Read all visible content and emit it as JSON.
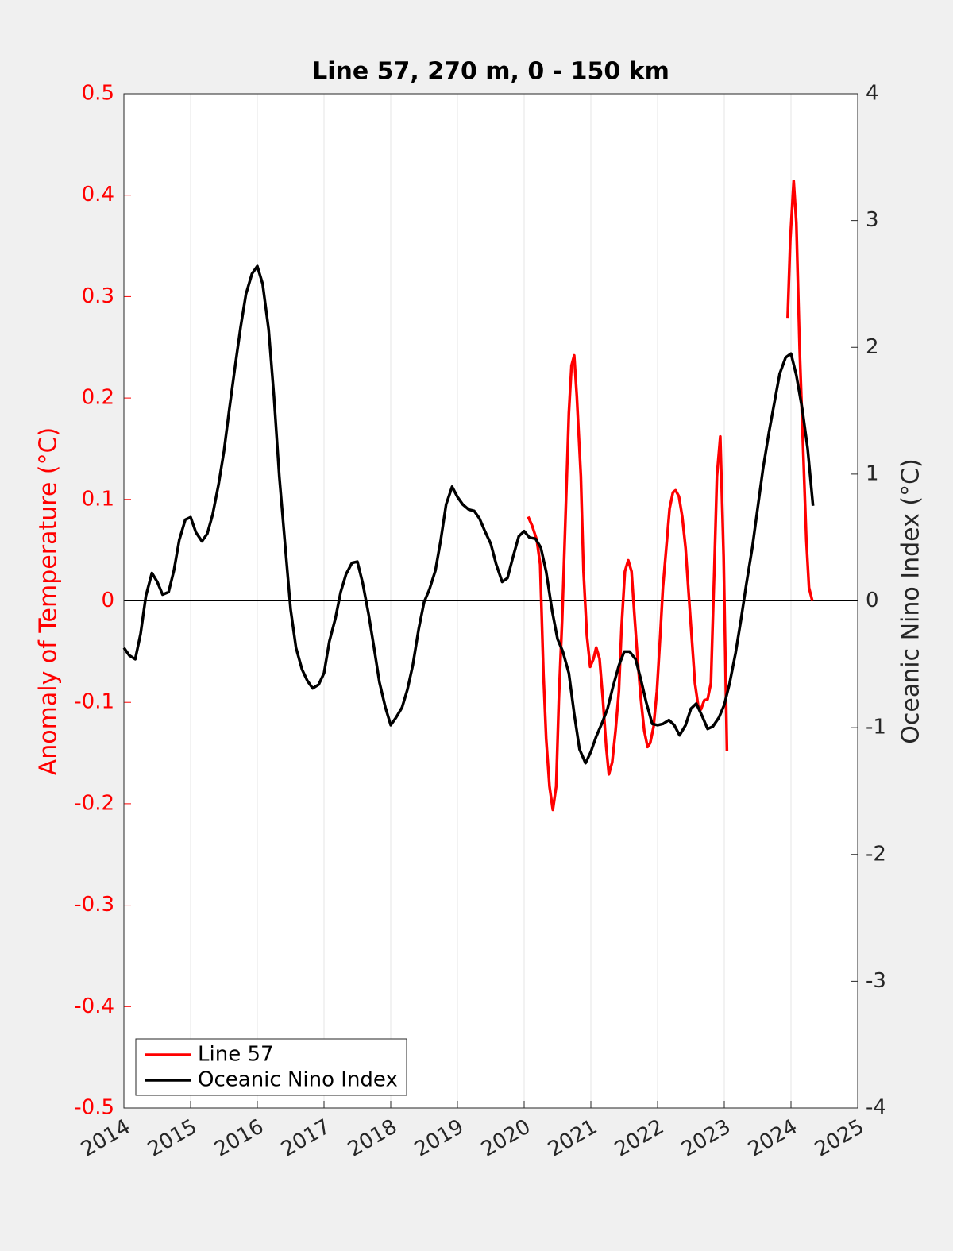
{
  "chart_data": {
    "type": "line",
    "title": "Line 57, 270 m, 0 - 150 km",
    "ylabel": "Anomaly of Temperature (°C)",
    "y2label": "Oceanic Nino Index (°C)",
    "xlim": [
      2014,
      2025
    ],
    "xticks": [
      2014,
      2015,
      2016,
      2017,
      2018,
      2019,
      2020,
      2021,
      2022,
      2023,
      2024,
      2025
    ],
    "ylim": [
      -0.5,
      0.5
    ],
    "yticks": [
      -0.5,
      -0.4,
      -0.3,
      -0.2,
      -0.1,
      0,
      0.1,
      0.2,
      0.3,
      0.4,
      0.5
    ],
    "y2lim": [
      -4,
      4
    ],
    "y2ticks": [
      -4,
      -3,
      -2,
      -1,
      0,
      1,
      2,
      3,
      4
    ],
    "reference_line": 0,
    "grid": true,
    "legend": "lower left",
    "series": [
      {
        "name": "Line 57",
        "color": "#ff0000",
        "axis": "y",
        "x": [
          2020.06,
          2020.12,
          2020.19,
          2020.24,
          2020.29,
          2020.33,
          2020.38,
          2020.43,
          2020.48,
          2020.52,
          2020.57,
          2020.62,
          2020.67,
          2020.71,
          2020.75,
          2020.79,
          2020.85,
          2020.89,
          2020.94,
          2020.99,
          2021.04,
          2021.08,
          2021.13,
          2021.18,
          2021.23,
          2021.27,
          2021.32,
          2021.37,
          2021.42,
          2021.46,
          2021.51,
          2021.56,
          2021.61,
          2021.65,
          2021.7,
          2021.75,
          2021.8,
          2021.85,
          2021.89,
          2021.94,
          2021.99,
          2022.04,
          2022.08,
          2022.13,
          2022.18,
          2022.23,
          2022.27,
          2022.32,
          2022.37,
          2022.42,
          2022.46,
          2022.51,
          2022.56,
          2022.61,
          2022.65,
          2022.7,
          2022.75,
          2022.8,
          2022.85,
          2022.89,
          2022.94,
          2022.99,
          2023.04,
          2023.5,
          2023.95,
          2023.99,
          2024.04,
          2024.08,
          2024.13,
          2024.18,
          2024.23,
          2024.27,
          2024.32
        ],
        "values": [
          0.083,
          0.074,
          0.06,
          0.036,
          -0.073,
          -0.136,
          -0.183,
          -0.206,
          -0.183,
          -0.097,
          -0.018,
          0.083,
          0.185,
          0.232,
          0.242,
          0.201,
          0.123,
          0.029,
          -0.034,
          -0.065,
          -0.057,
          -0.046,
          -0.057,
          -0.097,
          -0.144,
          -0.171,
          -0.159,
          -0.128,
          -0.089,
          -0.026,
          0.029,
          0.04,
          0.029,
          -0.011,
          -0.057,
          -0.097,
          -0.128,
          -0.144,
          -0.14,
          -0.124,
          -0.089,
          -0.034,
          0.013,
          0.052,
          0.091,
          0.107,
          0.109,
          0.103,
          0.083,
          0.052,
          0.013,
          -0.034,
          -0.081,
          -0.104,
          -0.107,
          -0.098,
          -0.097,
          -0.081,
          0.029,
          0.123,
          0.162,
          0.044,
          -0.148,
          null,
          0.279,
          0.357,
          0.414,
          0.373,
          0.248,
          0.154,
          0.06,
          0.013,
          0.0
        ]
      },
      {
        "name": "Oceanic Nino Index",
        "color": "#000000",
        "axis": "y2",
        "x": [
          2014.0,
          2014.08,
          2014.17,
          2014.25,
          2014.33,
          2014.42,
          2014.5,
          2014.58,
          2014.67,
          2014.75,
          2014.83,
          2014.92,
          2015.0,
          2015.08,
          2015.17,
          2015.25,
          2015.33,
          2015.42,
          2015.5,
          2015.58,
          2015.67,
          2015.75,
          2015.83,
          2015.92,
          2016.0,
          2016.08,
          2016.17,
          2016.25,
          2016.33,
          2016.42,
          2016.5,
          2016.58,
          2016.67,
          2016.75,
          2016.83,
          2016.92,
          2017.0,
          2017.08,
          2017.17,
          2017.25,
          2017.33,
          2017.42,
          2017.5,
          2017.58,
          2017.67,
          2017.75,
          2017.83,
          2017.92,
          2018.0,
          2018.08,
          2018.17,
          2018.25,
          2018.33,
          2018.42,
          2018.5,
          2018.58,
          2018.67,
          2018.75,
          2018.83,
          2018.92,
          2019.0,
          2019.08,
          2019.17,
          2019.25,
          2019.33,
          2019.42,
          2019.5,
          2019.58,
          2019.67,
          2019.75,
          2019.83,
          2019.92,
          2020.0,
          2020.08,
          2020.17,
          2020.25,
          2020.33,
          2020.42,
          2020.5,
          2020.58,
          2020.67,
          2020.75,
          2020.83,
          2020.92,
          2021.0,
          2021.08,
          2021.17,
          2021.25,
          2021.33,
          2021.42,
          2021.5,
          2021.58,
          2021.67,
          2021.75,
          2021.83,
          2021.92,
          2022.0,
          2022.08,
          2022.17,
          2022.25,
          2022.33,
          2022.42,
          2022.5,
          2022.58,
          2022.67,
          2022.75,
          2022.83,
          2022.92,
          2023.0,
          2023.08,
          2023.17,
          2023.25,
          2023.33,
          2023.42,
          2023.5,
          2023.58,
          2023.67,
          2023.75,
          2023.83,
          2023.92,
          2024.0,
          2024.08,
          2024.17,
          2024.25,
          2024.33
        ],
        "values": [
          -0.37,
          -0.43,
          -0.46,
          -0.26,
          0.04,
          0.22,
          0.15,
          0.05,
          0.07,
          0.24,
          0.48,
          0.64,
          0.66,
          0.54,
          0.47,
          0.53,
          0.68,
          0.92,
          1.18,
          1.51,
          1.86,
          2.16,
          2.42,
          2.58,
          2.64,
          2.5,
          2.14,
          1.61,
          0.98,
          0.42,
          -0.07,
          -0.37,
          -0.54,
          -0.63,
          -0.69,
          -0.66,
          -0.57,
          -0.32,
          -0.14,
          0.07,
          0.21,
          0.3,
          0.31,
          0.14,
          -0.11,
          -0.37,
          -0.64,
          -0.84,
          -0.98,
          -0.92,
          -0.84,
          -0.7,
          -0.51,
          -0.22,
          -0.01,
          0.09,
          0.24,
          0.48,
          0.76,
          0.9,
          0.82,
          0.76,
          0.72,
          0.71,
          0.65,
          0.54,
          0.45,
          0.29,
          0.15,
          0.18,
          0.34,
          0.51,
          0.55,
          0.5,
          0.49,
          0.42,
          0.23,
          -0.08,
          -0.3,
          -0.4,
          -0.57,
          -0.89,
          -1.17,
          -1.28,
          -1.19,
          -1.07,
          -0.96,
          -0.85,
          -0.68,
          -0.51,
          -0.4,
          -0.4,
          -0.46,
          -0.62,
          -0.8,
          -0.97,
          -0.98,
          -0.97,
          -0.94,
          -0.98,
          -1.06,
          -0.98,
          -0.85,
          -0.81,
          -0.91,
          -1.01,
          -0.99,
          -0.92,
          -0.82,
          -0.65,
          -0.41,
          -0.15,
          0.13,
          0.42,
          0.73,
          1.04,
          1.33,
          1.56,
          1.79,
          1.92,
          1.95,
          1.78,
          1.51,
          1.2,
          0.75
        ]
      }
    ]
  }
}
